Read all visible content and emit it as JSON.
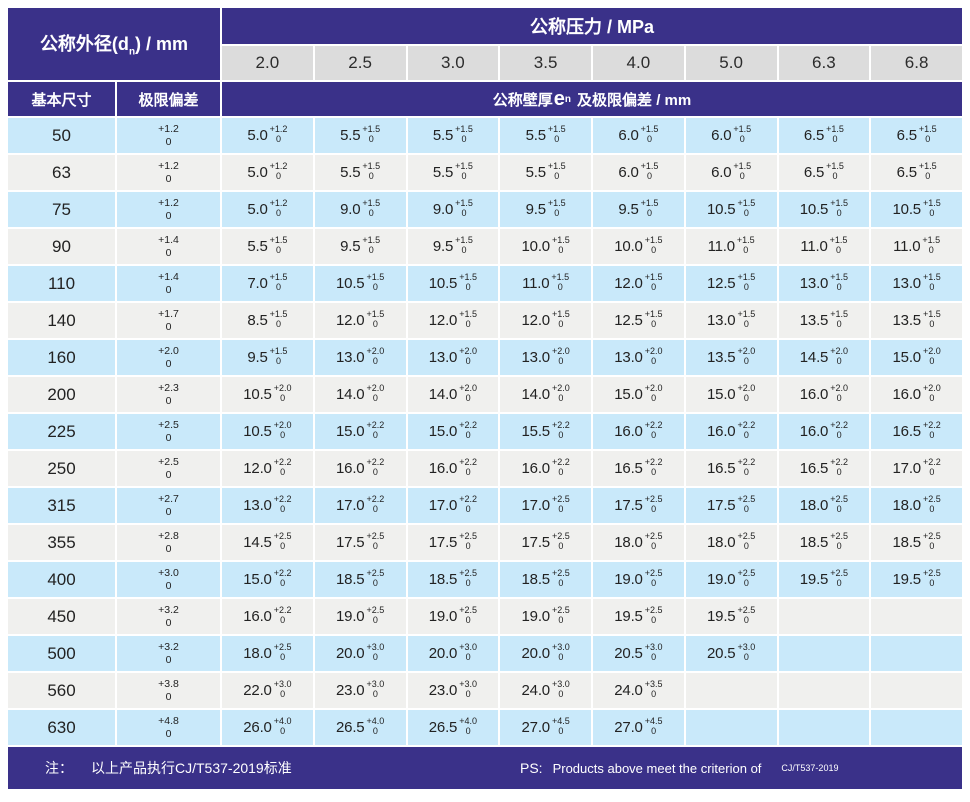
{
  "colors": {
    "purple": "#3a3189",
    "row_blue": "#c9e9fa",
    "row_gray": "#f0f0ee",
    "subheader_gray": "#dcdcdc",
    "text_dark": "#222222"
  },
  "header": {
    "diameter": {
      "prefix": "公称外径(d",
      "sub": "n",
      "suffix": ") / mm"
    },
    "pressure_label": "公称压力 / MPa",
    "pressure_values": [
      "2.0",
      "2.5",
      "3.0",
      "3.5",
      "4.0",
      "5.0",
      "6.3",
      "6.8"
    ],
    "basic_size": "基本尺寸",
    "limit_deviation": "极限偏差",
    "thickness": {
      "prefix": "公称壁厚",
      "e": "e",
      "sub": "n",
      "suffix": "及极限偏差 / mm"
    }
  },
  "rows": [
    {
      "dn": "50",
      "dev_plus": "+1.2",
      "dev_minus": "0",
      "cells": [
        {
          "v": "5.0",
          "p": "+1.2",
          "m": "0"
        },
        {
          "v": "5.5",
          "p": "+1.5",
          "m": "0"
        },
        {
          "v": "5.5",
          "p": "+1.5",
          "m": "0"
        },
        {
          "v": "5.5",
          "p": "+1.5",
          "m": "0"
        },
        {
          "v": "6.0",
          "p": "+1.5",
          "m": "0"
        },
        {
          "v": "6.0",
          "p": "+1.5",
          "m": "0"
        },
        {
          "v": "6.5",
          "p": "+1.5",
          "m": "0"
        },
        {
          "v": "6.5",
          "p": "+1.5",
          "m": "0"
        }
      ]
    },
    {
      "dn": "63",
      "dev_plus": "+1.2",
      "dev_minus": "0",
      "cells": [
        {
          "v": "5.0",
          "p": "+1.2",
          "m": "0"
        },
        {
          "v": "5.5",
          "p": "+1.5",
          "m": "0"
        },
        {
          "v": "5.5",
          "p": "+1.5",
          "m": "0"
        },
        {
          "v": "5.5",
          "p": "+1.5",
          "m": "0"
        },
        {
          "v": "6.0",
          "p": "+1.5",
          "m": "0"
        },
        {
          "v": "6.0",
          "p": "+1.5",
          "m": "0"
        },
        {
          "v": "6.5",
          "p": "+1.5",
          "m": "0"
        },
        {
          "v": "6.5",
          "p": "+1.5",
          "m": "0"
        }
      ]
    },
    {
      "dn": "75",
      "dev_plus": "+1.2",
      "dev_minus": "0",
      "cells": [
        {
          "v": "5.0",
          "p": "+1.2",
          "m": "0"
        },
        {
          "v": "9.0",
          "p": "+1.5",
          "m": "0"
        },
        {
          "v": "9.0",
          "p": "+1.5",
          "m": "0"
        },
        {
          "v": "9.5",
          "p": "+1.5",
          "m": "0"
        },
        {
          "v": "9.5",
          "p": "+1.5",
          "m": "0"
        },
        {
          "v": "10.5",
          "p": "+1.5",
          "m": "0"
        },
        {
          "v": "10.5",
          "p": "+1.5",
          "m": "0"
        },
        {
          "v": "10.5",
          "p": "+1.5",
          "m": "0"
        }
      ]
    },
    {
      "dn": "90",
      "dev_plus": "+1.4",
      "dev_minus": "0",
      "cells": [
        {
          "v": "5.5",
          "p": "+1.5",
          "m": "0"
        },
        {
          "v": "9.5",
          "p": "+1.5",
          "m": "0"
        },
        {
          "v": "9.5",
          "p": "+1.5",
          "m": "0"
        },
        {
          "v": "10.0",
          "p": "+1.5",
          "m": "0"
        },
        {
          "v": "10.0",
          "p": "+1.5",
          "m": "0"
        },
        {
          "v": "11.0",
          "p": "+1.5",
          "m": "0"
        },
        {
          "v": "11.0",
          "p": "+1.5",
          "m": "0"
        },
        {
          "v": "11.0",
          "p": "+1.5",
          "m": "0"
        }
      ]
    },
    {
      "dn": "110",
      "dev_plus": "+1.4",
      "dev_minus": "0",
      "cells": [
        {
          "v": "7.0",
          "p": "+1.5",
          "m": "0"
        },
        {
          "v": "10.5",
          "p": "+1.5",
          "m": "0"
        },
        {
          "v": "10.5",
          "p": "+1.5",
          "m": "0"
        },
        {
          "v": "11.0",
          "p": "+1.5",
          "m": "0"
        },
        {
          "v": "12.0",
          "p": "+1.5",
          "m": "0"
        },
        {
          "v": "12.5",
          "p": "+1.5",
          "m": "0"
        },
        {
          "v": "13.0",
          "p": "+1.5",
          "m": "0"
        },
        {
          "v": "13.0",
          "p": "+1.5",
          "m": "0"
        }
      ]
    },
    {
      "dn": "140",
      "dev_plus": "+1.7",
      "dev_minus": "0",
      "cells": [
        {
          "v": "8.5",
          "p": "+1.5",
          "m": "0"
        },
        {
          "v": "12.0",
          "p": "+1.5",
          "m": "0"
        },
        {
          "v": "12.0",
          "p": "+1.5",
          "m": "0"
        },
        {
          "v": "12.0",
          "p": "+1.5",
          "m": "0"
        },
        {
          "v": "12.5",
          "p": "+1.5",
          "m": "0"
        },
        {
          "v": "13.0",
          "p": "+1.5",
          "m": "0"
        },
        {
          "v": "13.5",
          "p": "+1.5",
          "m": "0"
        },
        {
          "v": "13.5",
          "p": "+1.5",
          "m": "0"
        }
      ]
    },
    {
      "dn": "160",
      "dev_plus": "+2.0",
      "dev_minus": "0",
      "cells": [
        {
          "v": "9.5",
          "p": "+1.5",
          "m": "0"
        },
        {
          "v": "13.0",
          "p": "+2.0",
          "m": "0"
        },
        {
          "v": "13.0",
          "p": "+2.0",
          "m": "0"
        },
        {
          "v": "13.0",
          "p": "+2.0",
          "m": "0"
        },
        {
          "v": "13.0",
          "p": "+2.0",
          "m": "0"
        },
        {
          "v": "13.5",
          "p": "+2.0",
          "m": "0"
        },
        {
          "v": "14.5",
          "p": "+2.0",
          "m": "0"
        },
        {
          "v": "15.0",
          "p": "+2.0",
          "m": "0"
        }
      ]
    },
    {
      "dn": "200",
      "dev_plus": "+2.3",
      "dev_minus": "0",
      "cells": [
        {
          "v": "10.5",
          "p": "+2.0",
          "m": "0"
        },
        {
          "v": "14.0",
          "p": "+2.0",
          "m": "0"
        },
        {
          "v": "14.0",
          "p": "+2.0",
          "m": "0"
        },
        {
          "v": "14.0",
          "p": "+2.0",
          "m": "0"
        },
        {
          "v": "15.0",
          "p": "+2.0",
          "m": "0"
        },
        {
          "v": "15.0",
          "p": "+2.0",
          "m": "0"
        },
        {
          "v": "16.0",
          "p": "+2.0",
          "m": "0"
        },
        {
          "v": "16.0",
          "p": "+2.0",
          "m": "0"
        }
      ]
    },
    {
      "dn": "225",
      "dev_plus": "+2.5",
      "dev_minus": "0",
      "cells": [
        {
          "v": "10.5",
          "p": "+2.0",
          "m": "0"
        },
        {
          "v": "15.0",
          "p": "+2.2",
          "m": "0"
        },
        {
          "v": "15.0",
          "p": "+2.2",
          "m": "0"
        },
        {
          "v": "15.5",
          "p": "+2.2",
          "m": "0"
        },
        {
          "v": "16.0",
          "p": "+2.2",
          "m": "0"
        },
        {
          "v": "16.0",
          "p": "+2.2",
          "m": "0"
        },
        {
          "v": "16.0",
          "p": "+2.2",
          "m": "0"
        },
        {
          "v": "16.5",
          "p": "+2.2",
          "m": "0"
        }
      ]
    },
    {
      "dn": "250",
      "dev_plus": "+2.5",
      "dev_minus": "0",
      "cells": [
        {
          "v": "12.0",
          "p": "+2.2",
          "m": "0"
        },
        {
          "v": "16.0",
          "p": "+2.2",
          "m": "0"
        },
        {
          "v": "16.0",
          "p": "+2.2",
          "m": "0"
        },
        {
          "v": "16.0",
          "p": "+2.2",
          "m": "0"
        },
        {
          "v": "16.5",
          "p": "+2.2",
          "m": "0"
        },
        {
          "v": "16.5",
          "p": "+2.2",
          "m": "0"
        },
        {
          "v": "16.5",
          "p": "+2.2",
          "m": "0"
        },
        {
          "v": "17.0",
          "p": "+2.2",
          "m": "0"
        }
      ]
    },
    {
      "dn": "315",
      "dev_plus": "+2.7",
      "dev_minus": "0",
      "cells": [
        {
          "v": "13.0",
          "p": "+2.2",
          "m": "0"
        },
        {
          "v": "17.0",
          "p": "+2.2",
          "m": "0"
        },
        {
          "v": "17.0",
          "p": "+2.2",
          "m": "0"
        },
        {
          "v": "17.0",
          "p": "+2.5",
          "m": "0"
        },
        {
          "v": "17.5",
          "p": "+2.5",
          "m": "0"
        },
        {
          "v": "17.5",
          "p": "+2.5",
          "m": "0"
        },
        {
          "v": "18.0",
          "p": "+2.5",
          "m": "0"
        },
        {
          "v": "18.0",
          "p": "+2.5",
          "m": "0"
        }
      ]
    },
    {
      "dn": "355",
      "dev_plus": "+2.8",
      "dev_minus": "0",
      "cells": [
        {
          "v": "14.5",
          "p": "+2.5",
          "m": "0"
        },
        {
          "v": "17.5",
          "p": "+2.5",
          "m": "0"
        },
        {
          "v": "17.5",
          "p": "+2.5",
          "m": "0"
        },
        {
          "v": "17.5",
          "p": "+2.5",
          "m": "0"
        },
        {
          "v": "18.0",
          "p": "+2.5",
          "m": "0"
        },
        {
          "v": "18.0",
          "p": "+2.5",
          "m": "0"
        },
        {
          "v": "18.5",
          "p": "+2.5",
          "m": "0"
        },
        {
          "v": "18.5",
          "p": "+2.5",
          "m": "0"
        }
      ]
    },
    {
      "dn": "400",
      "dev_plus": "+3.0",
      "dev_minus": "0",
      "cells": [
        {
          "v": "15.0",
          "p": "+2.2",
          "m": "0"
        },
        {
          "v": "18.5",
          "p": "+2.5",
          "m": "0"
        },
        {
          "v": "18.5",
          "p": "+2.5",
          "m": "0"
        },
        {
          "v": "18.5",
          "p": "+2.5",
          "m": "0"
        },
        {
          "v": "19.0",
          "p": "+2.5",
          "m": "0"
        },
        {
          "v": "19.0",
          "p": "+2.5",
          "m": "0"
        },
        {
          "v": "19.5",
          "p": "+2.5",
          "m": "0"
        },
        {
          "v": "19.5",
          "p": "+2.5",
          "m": "0"
        }
      ]
    },
    {
      "dn": "450",
      "dev_plus": "+3.2",
      "dev_minus": "0",
      "cells": [
        {
          "v": "16.0",
          "p": "+2.2",
          "m": "0"
        },
        {
          "v": "19.0",
          "p": "+2.5",
          "m": "0"
        },
        {
          "v": "19.0",
          "p": "+2.5",
          "m": "0"
        },
        {
          "v": "19.0",
          "p": "+2.5",
          "m": "0"
        },
        {
          "v": "19.5",
          "p": "+2.5",
          "m": "0"
        },
        {
          "v": "19.5",
          "p": "+2.5",
          "m": "0"
        },
        null,
        null
      ]
    },
    {
      "dn": "500",
      "dev_plus": "+3.2",
      "dev_minus": "0",
      "cells": [
        {
          "v": "18.0",
          "p": "+2.5",
          "m": "0"
        },
        {
          "v": "20.0",
          "p": "+3.0",
          "m": "0"
        },
        {
          "v": "20.0",
          "p": "+3.0",
          "m": "0"
        },
        {
          "v": "20.0",
          "p": "+3.0",
          "m": "0"
        },
        {
          "v": "20.5",
          "p": "+3.0",
          "m": "0"
        },
        {
          "v": "20.5",
          "p": "+3.0",
          "m": "0"
        },
        null,
        null
      ]
    },
    {
      "dn": "560",
      "dev_plus": "+3.8",
      "dev_minus": "0",
      "cells": [
        {
          "v": "22.0",
          "p": "+3.0",
          "m": "0"
        },
        {
          "v": "23.0",
          "p": "+3.0",
          "m": "0"
        },
        {
          "v": "23.0",
          "p": "+3.0",
          "m": "0"
        },
        {
          "v": "24.0",
          "p": "+3.0",
          "m": "0"
        },
        {
          "v": "24.0",
          "p": "+3.5",
          "m": "0"
        },
        null,
        null,
        null
      ]
    },
    {
      "dn": "630",
      "dev_plus": "+4.8",
      "dev_minus": "0",
      "cells": [
        {
          "v": "26.0",
          "p": "+4.0",
          "m": "0"
        },
        {
          "v": "26.5",
          "p": "+4.0",
          "m": "0"
        },
        {
          "v": "26.5",
          "p": "+4.0",
          "m": "0"
        },
        {
          "v": "27.0",
          "p": "+4.5",
          "m": "0"
        },
        {
          "v": "27.0",
          "p": "+4.5",
          "m": "0"
        },
        null,
        null,
        null
      ]
    }
  ],
  "footer": {
    "note_label": "注：",
    "note_text": "以上产品执行CJ/T537-2019标准",
    "ps_label": "PS:",
    "ps_text": "Products above meet the criterion of",
    "ps_standard": "CJ/T537-2019"
  }
}
